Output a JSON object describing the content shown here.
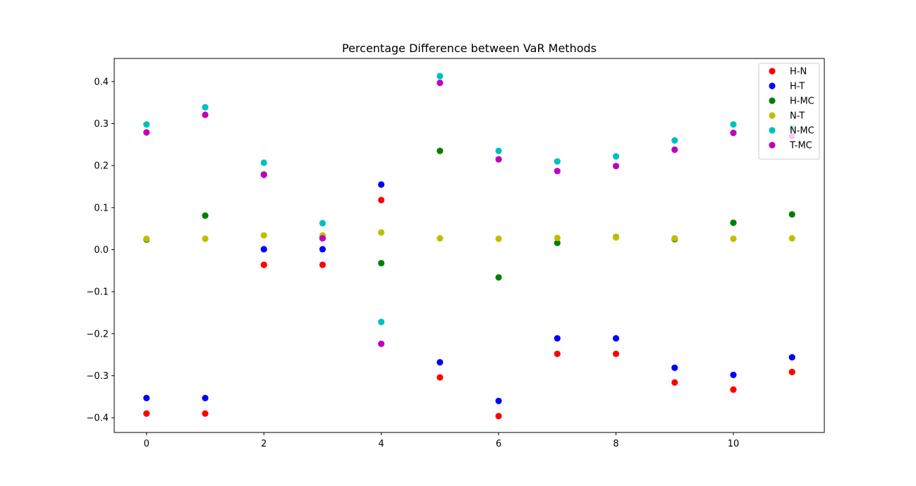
{
  "chart_data": {
    "type": "scatter",
    "title": "Percentage Difference between VaR Methods",
    "xlabel": "",
    "ylabel": "",
    "xlim": [
      -0.55,
      11.55
    ],
    "ylim": [
      -0.435,
      0.455
    ],
    "xticks": [
      0,
      2,
      4,
      6,
      8,
      10
    ],
    "xtick_labels": [
      "0",
      "2",
      "4",
      "6",
      "8",
      "10"
    ],
    "yticks": [
      -0.4,
      -0.3,
      -0.2,
      -0.1,
      0.0,
      0.1,
      0.2,
      0.3,
      0.4
    ],
    "ytick_labels": [
      "−0.4",
      "−0.3",
      "−0.2",
      "−0.1",
      "0.0",
      "0.1",
      "0.2",
      "0.3",
      "0.4"
    ],
    "grid": false,
    "legend_position": "top-right",
    "x": [
      0,
      1,
      2,
      3,
      4,
      5,
      6,
      7,
      8,
      9,
      10,
      11
    ],
    "series": [
      {
        "name": "H-N",
        "color": "#ff0000",
        "values": [
          -0.39,
          -0.39,
          -0.036,
          -0.036,
          0.118,
          -0.304,
          -0.396,
          -0.248,
          -0.248,
          -0.316,
          -0.333,
          -0.291
        ]
      },
      {
        "name": "H-T",
        "color": "#0000ff",
        "values": [
          -0.353,
          -0.353,
          0.001,
          0.001,
          0.155,
          -0.268,
          -0.36,
          -0.211,
          -0.211,
          -0.281,
          -0.298,
          -0.256
        ]
      },
      {
        "name": "H-MC",
        "color": "#008000",
        "values": [
          0.024,
          0.081,
          0.179,
          0.028,
          -0.032,
          0.235,
          -0.066,
          0.016,
          0.03,
          0.025,
          0.064,
          0.084
        ]
      },
      {
        "name": "N-T",
        "color": "#bfbf00",
        "values": [
          0.026,
          0.026,
          0.034,
          0.034,
          0.041,
          0.027,
          0.026,
          0.028,
          0.029,
          0.027,
          0.026,
          0.027
        ]
      },
      {
        "name": "N-MC",
        "color": "#00bfbf",
        "values": [
          0.298,
          0.339,
          0.207,
          0.063,
          -0.172,
          0.413,
          0.235,
          0.21,
          0.222,
          0.26,
          0.298,
          0.29
        ]
      },
      {
        "name": "T-MC",
        "color": "#bf00bf",
        "values": [
          0.279,
          0.321,
          0.178,
          0.027,
          -0.224,
          0.397,
          0.215,
          0.187,
          0.199,
          0.238,
          0.278,
          0.27
        ]
      }
    ]
  }
}
